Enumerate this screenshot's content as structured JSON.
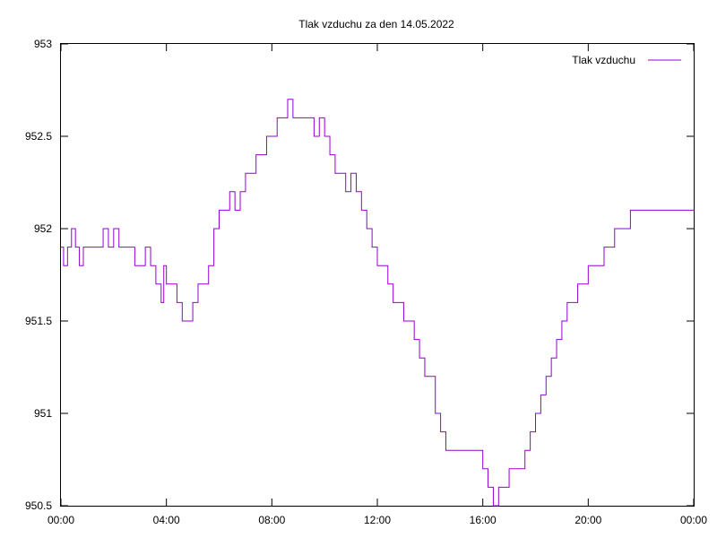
{
  "chart_data": {
    "type": "line",
    "title": "Tlak vzduchu za den 14.05.2022",
    "xlabel": "",
    "ylabel": "",
    "x_unit": "hours",
    "xlim": [
      0,
      24
    ],
    "ylim": [
      950.5,
      953
    ],
    "x_ticks": [
      {
        "value": 0,
        "label": "00:00"
      },
      {
        "value": 4,
        "label": "04:00"
      },
      {
        "value": 8,
        "label": "08:00"
      },
      {
        "value": 12,
        "label": "12:00"
      },
      {
        "value": 16,
        "label": "16:00"
      },
      {
        "value": 20,
        "label": "20:00"
      },
      {
        "value": 24,
        "label": "00:00"
      }
    ],
    "y_ticks": [
      {
        "value": 950.5,
        "label": "950.5"
      },
      {
        "value": 951,
        "label": "951"
      },
      {
        "value": 951.5,
        "label": "951.5"
      },
      {
        "value": 952,
        "label": "952"
      },
      {
        "value": 952.5,
        "label": "952.5"
      },
      {
        "value": 953,
        "label": "953"
      }
    ],
    "grid": false,
    "legend_position": "top-right",
    "series": [
      {
        "name": "Tlak vzduchu",
        "color": "#9400d3",
        "x": [
          0,
          0.1,
          0.25,
          0.4,
          0.55,
          0.7,
          0.85,
          1.0,
          1.2,
          1.4,
          1.6,
          1.8,
          2.0,
          2.2,
          2.4,
          2.6,
          2.8,
          3.0,
          3.2,
          3.4,
          3.6,
          3.8,
          3.9,
          4.0,
          4.2,
          4.4,
          4.6,
          4.8,
          5.0,
          5.2,
          5.4,
          5.6,
          5.8,
          6.0,
          6.2,
          6.4,
          6.6,
          6.8,
          7.0,
          7.2,
          7.4,
          7.6,
          7.8,
          8.0,
          8.2,
          8.4,
          8.6,
          8.8,
          9.0,
          9.2,
          9.4,
          9.6,
          9.8,
          10.0,
          10.2,
          10.4,
          10.6,
          10.8,
          11.0,
          11.2,
          11.4,
          11.6,
          11.8,
          12.0,
          12.2,
          12.4,
          12.6,
          12.8,
          13.0,
          13.2,
          13.4,
          13.6,
          13.8,
          14.0,
          14.2,
          14.4,
          14.6,
          14.8,
          15.0,
          15.2,
          15.4,
          15.6,
          15.8,
          16.0,
          16.2,
          16.4,
          16.6,
          16.8,
          17.0,
          17.2,
          17.4,
          17.6,
          17.8,
          18.0,
          18.2,
          18.4,
          18.6,
          18.8,
          19.0,
          19.2,
          19.4,
          19.6,
          19.8,
          20.0,
          20.2,
          20.4,
          20.6,
          20.8,
          21.0,
          21.2,
          21.4,
          21.6,
          21.8,
          22.0,
          22.2,
          22.4,
          22.6,
          22.8,
          23.0,
          23.2,
          23.4,
          23.6,
          23.8,
          24.0
        ],
        "y": [
          951.9,
          951.8,
          951.9,
          952.0,
          951.9,
          951.8,
          951.9,
          951.9,
          951.9,
          951.9,
          952.0,
          951.9,
          952.0,
          951.9,
          951.9,
          951.9,
          951.8,
          951.8,
          951.9,
          951.8,
          951.7,
          951.6,
          951.8,
          951.7,
          951.7,
          951.6,
          951.5,
          951.5,
          951.6,
          951.7,
          951.7,
          951.8,
          952.0,
          952.1,
          952.1,
          952.2,
          952.1,
          952.2,
          952.3,
          952.3,
          952.4,
          952.4,
          952.5,
          952.5,
          952.6,
          952.6,
          952.7,
          952.6,
          952.6,
          952.6,
          952.6,
          952.5,
          952.6,
          952.5,
          952.4,
          952.3,
          952.3,
          952.2,
          952.3,
          952.2,
          952.1,
          952.0,
          951.9,
          951.8,
          951.8,
          951.7,
          951.6,
          951.6,
          951.5,
          951.5,
          951.4,
          951.3,
          951.2,
          951.2,
          951.0,
          950.9,
          950.8,
          950.8,
          950.8,
          950.8,
          950.8,
          950.8,
          950.8,
          950.7,
          950.6,
          950.5,
          950.6,
          950.6,
          950.7,
          950.7,
          950.7,
          950.8,
          950.9,
          951.0,
          951.1,
          951.2,
          951.3,
          951.4,
          951.5,
          951.6,
          951.6,
          951.7,
          951.7,
          951.8,
          951.8,
          951.8,
          951.9,
          951.9,
          952.0,
          952.0,
          952.0,
          952.1,
          952.1,
          952.1,
          952.1,
          952.1,
          952.1,
          952.1,
          952.1,
          952.1,
          952.1,
          952.1,
          952.1,
          952.1
        ]
      }
    ]
  }
}
